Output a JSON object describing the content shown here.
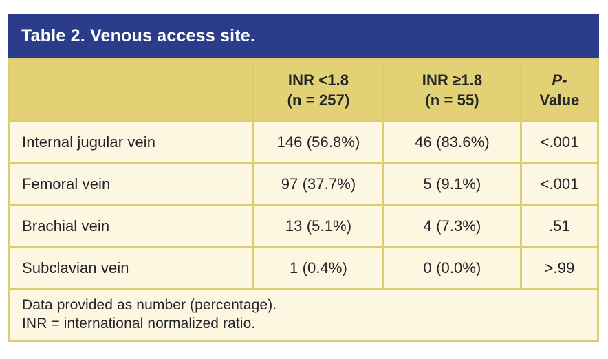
{
  "title": "Table 2. Venous access site.",
  "colors": {
    "title_bar_bg": "#2b3d8a",
    "title_text": "#ffffff",
    "header_row_bg": "#e3d275",
    "grid_line": "#ddcc70",
    "cell_bg": "#fdf6e0",
    "text": "#24242b",
    "page_bg": "#ffffff"
  },
  "table": {
    "columns": [
      {
        "line1": "",
        "line2": ""
      },
      {
        "line1": "INR <1.8",
        "line2": "(n = 257)"
      },
      {
        "line1": "INR ≥1.8",
        "line2": "(n = 55)"
      },
      {
        "line1": "P-",
        "line2": "Value"
      }
    ],
    "rows": [
      {
        "label": "Internal jugular vein",
        "values": [
          "146 (56.8%)",
          "46 (83.6%)",
          "<.001"
        ]
      },
      {
        "label": "Femoral vein",
        "values": [
          "97 (37.7%)",
          "5 (9.1%)",
          "<.001"
        ]
      },
      {
        "label": "Brachial vein",
        "values": [
          "13 (5.1%)",
          "4 (7.3%)",
          ".51"
        ]
      },
      {
        "label": "Subclavian vein",
        "values": [
          "1 (0.4%)",
          "0 (0.0%)",
          ">.99"
        ]
      }
    ],
    "footnotes": [
      "Data provided as number (percentage).",
      "INR = international normalized ratio."
    ]
  }
}
